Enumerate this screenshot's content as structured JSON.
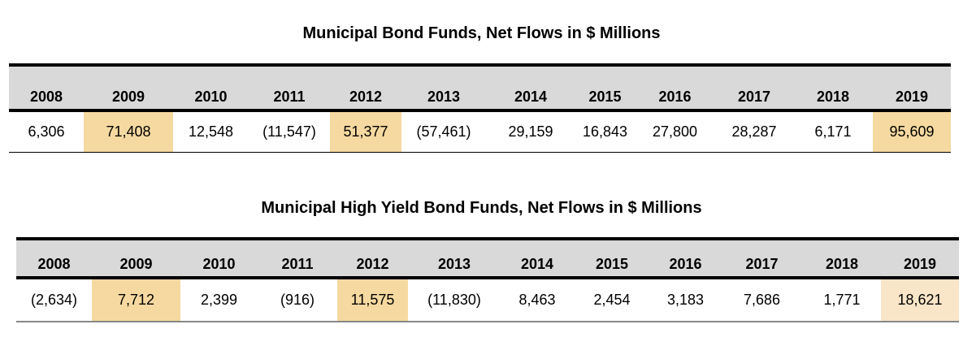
{
  "chart_data": [
    {
      "type": "table",
      "title": "Municipal Bond Funds, Net Flows in $ Millions",
      "columns": [
        "2008",
        "2009",
        "2010",
        "2011",
        "2012",
        "2013",
        "2014",
        "2015",
        "2016",
        "2017",
        "2018",
        "2019"
      ],
      "values": [
        "6,306",
        "71,408",
        "12,548",
        "(11,547)",
        "51,377",
        "(57,461)",
        "29,159",
        "16,843",
        "27,800",
        "28,287",
        "6,171",
        "95,609"
      ],
      "highlighted": [
        "2009",
        "2012",
        "2019"
      ]
    },
    {
      "type": "table",
      "title": "Municipal High Yield Bond Funds, Net Flows in $ Millions",
      "columns": [
        "2008",
        "2009",
        "2010",
        "2011",
        "2012",
        "2013",
        "2014",
        "2015",
        "2016",
        "2017",
        "2018",
        "2019"
      ],
      "values": [
        "(2,634)",
        "7,712",
        "2,399",
        "(916)",
        "11,575",
        "(11,830)",
        "8,463",
        "2,454",
        "3,183",
        "7,686",
        "1,771",
        "18,621"
      ],
      "highlighted": [
        "2009",
        "2012",
        "2019"
      ]
    }
  ],
  "colors": {
    "header_bg": "#d9d9d9",
    "highlight": "#f5d9a0",
    "highlight_light": "#f9e5c8"
  }
}
